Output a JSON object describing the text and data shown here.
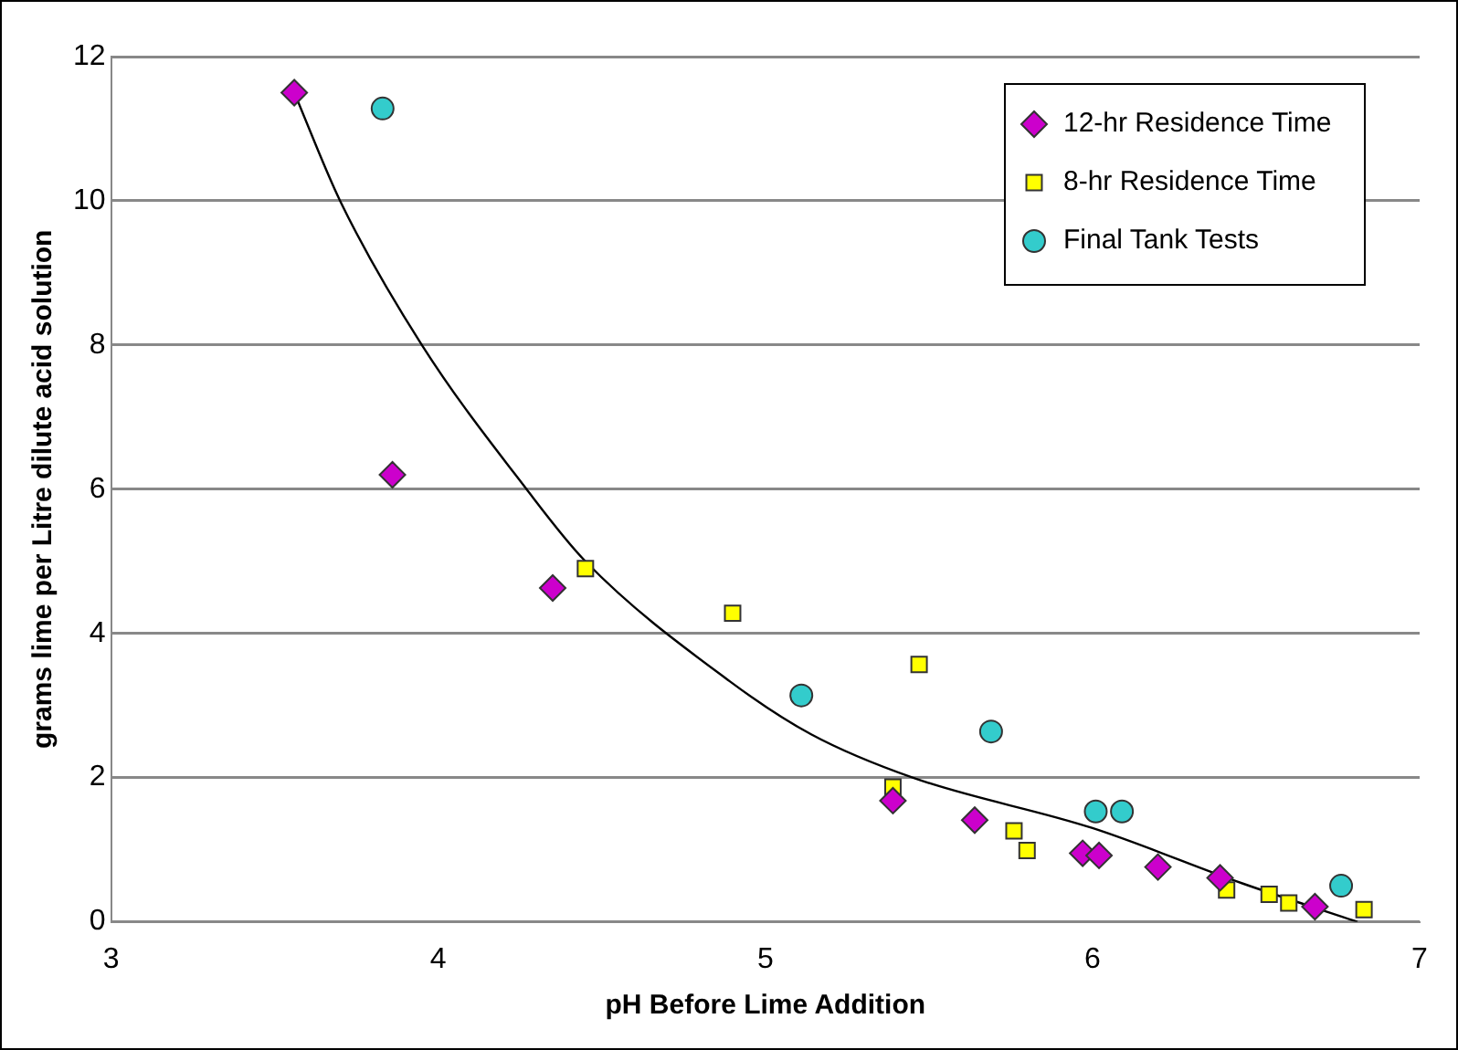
{
  "chart_data": {
    "type": "scatter",
    "xlabel": "pH Before Lime Addition",
    "ylabel": "grams lime per Litre dilute acid solution",
    "xlim": [
      3,
      7
    ],
    "xticks": [
      3,
      4,
      5,
      6,
      7
    ],
    "ylim": [
      0,
      12
    ],
    "yticks": [
      0,
      2,
      4,
      6,
      8,
      10,
      12
    ],
    "grid": "y",
    "legend": "top right",
    "series": [
      {
        "name": "12-hr Residence Time",
        "color": "#cc00cc",
        "marker": "diamond",
        "x": [
          3.56,
          3.86,
          4.35,
          5.39,
          5.64,
          5.97,
          6.02,
          6.2,
          6.39,
          6.68
        ],
        "values": [
          11.5,
          6.2,
          4.63,
          1.68,
          1.41,
          0.95,
          0.92,
          0.76,
          0.61,
          0.21
        ]
      },
      {
        "name": "8-hr Residence Time",
        "color": "#ffff00",
        "marker": "square",
        "x": [
          4.45,
          4.9,
          5.47,
          5.39,
          5.76,
          5.8,
          6.41,
          6.54,
          6.6,
          6.83
        ],
        "values": [
          4.9,
          4.28,
          3.57,
          1.87,
          1.26,
          0.99,
          0.44,
          0.38,
          0.26,
          0.17
        ]
      },
      {
        "name": "Final Tank Tests",
        "color": "#33cccc",
        "marker": "circle",
        "x": [
          3.83,
          5.11,
          5.69,
          6.01,
          6.09,
          6.76
        ],
        "values": [
          11.28,
          3.14,
          2.64,
          1.53,
          1.53,
          0.5
        ]
      },
      {
        "type": "line",
        "color": "#000000",
        "marker": "none",
        "x": [
          3.56,
          3.7,
          3.95,
          4.27,
          4.45,
          4.89,
          5.14,
          5.45,
          6.0,
          6.46,
          6.81
        ],
        "values": [
          11.5,
          10,
          8,
          6,
          5.0,
          3.34,
          2.6,
          2.0,
          1.3,
          0.53,
          0
        ]
      }
    ]
  }
}
